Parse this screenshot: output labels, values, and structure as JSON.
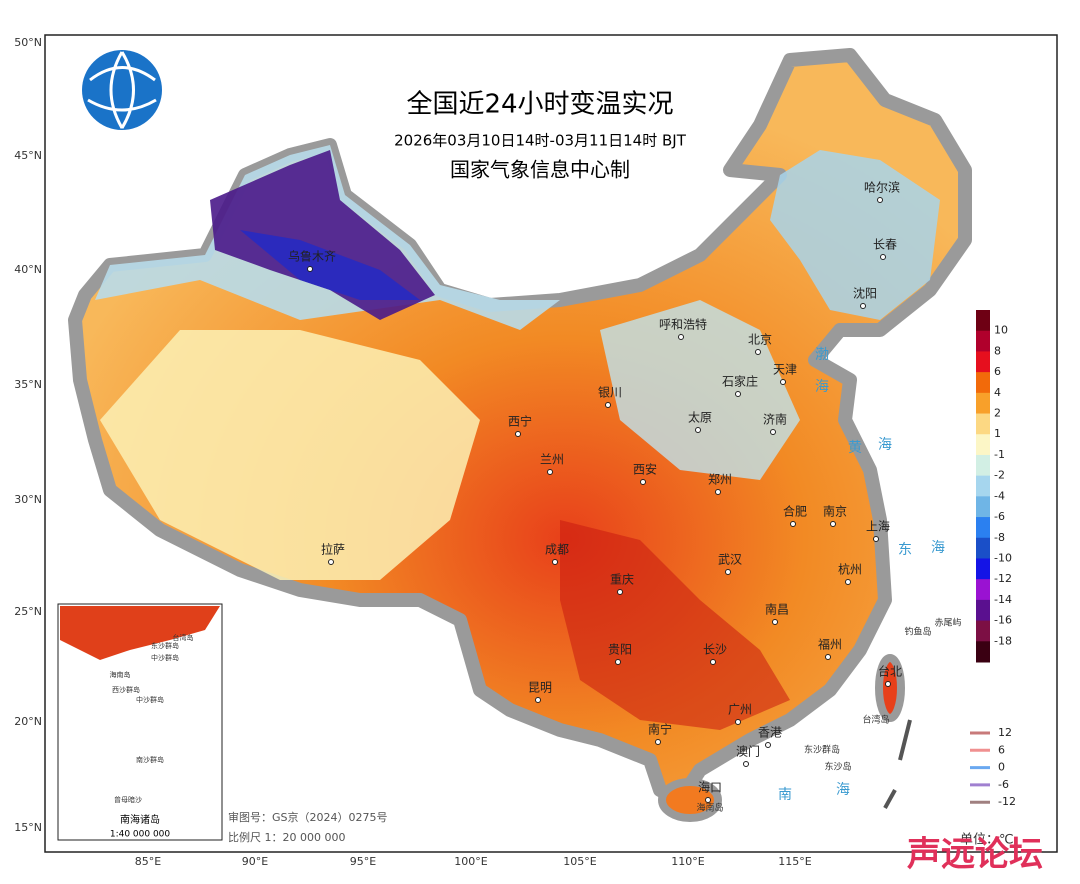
{
  "header": {
    "title": "全国近24小时变温实况",
    "subtitle": "2026年03月10日14时-03月11日14时  BJT",
    "producer": "国家气象信息中心制"
  },
  "lat_labels": [
    "50°N",
    "45°N",
    "40°N",
    "35°N",
    "30°N",
    "25°N",
    "20°N",
    "15°N"
  ],
  "lon_labels": [
    "85°E",
    "90°E",
    "95°E",
    "100°E",
    "105°E",
    "110°E",
    "115°E"
  ],
  "cities": [
    "乌鲁木齐",
    "哈尔滨",
    "长春",
    "沈阳",
    "呼和浩特",
    "北京",
    "天津",
    "石家庄",
    "银川",
    "太原",
    "济南",
    "西宁",
    "兰州",
    "郑州",
    "西安",
    "合肥",
    "南京",
    "上海",
    "拉萨",
    "成都",
    "武汉",
    "杭州",
    "重庆",
    "南昌",
    "长沙",
    "贵阳",
    "福州",
    "台北",
    "昆明",
    "南宁",
    "广州",
    "香港",
    "澳门",
    "海口"
  ],
  "seas": [
    "渤",
    "海",
    "黄",
    "海",
    "东",
    "海",
    "南",
    "海"
  ],
  "islands": [
    "钓鱼岛",
    "赤尾屿",
    "台湾岛",
    "东沙群岛",
    "东沙岛",
    "海南岛"
  ],
  "inset": {
    "labels": [
      "台湾岛",
      "东沙群岛",
      "中沙群岛",
      "海南岛",
      "西沙群岛",
      "中沙群岛",
      "南沙群岛",
      "曾母暗沙"
    ],
    "title": "南海诸岛",
    "scale": "1:40 000 000"
  },
  "legend": {
    "values": [
      10,
      8,
      6,
      4,
      2,
      1,
      -1,
      -2,
      -4,
      -6,
      -8,
      -10,
      -12,
      -14,
      -16,
      -18
    ],
    "colors": [
      "#6e0014",
      "#b0002c",
      "#e60f1e",
      "#f26a0a",
      "#f8a02a",
      "#fcd883",
      "#fcf6c6",
      "#d2efe4",
      "#a6d6ee",
      "#6fb5e6",
      "#2b80f0",
      "#1a4fc8",
      "#1414e6",
      "#9a12d2",
      "#5a108f",
      "#7c0f44",
      "#3a0012"
    ]
  },
  "contour_legend": {
    "values": [
      12,
      6,
      0,
      -6,
      -12
    ],
    "colors": [
      "#c87a7a",
      "#f09090",
      "#6aa8f0",
      "#a080d0",
      "#a08080"
    ]
  },
  "footer": {
    "approval": "审图号：GS京（2024）0275号",
    "scale": "比例尺 1：20 000 000",
    "unit": "单位：℃"
  },
  "watermark": "声远论坛"
}
